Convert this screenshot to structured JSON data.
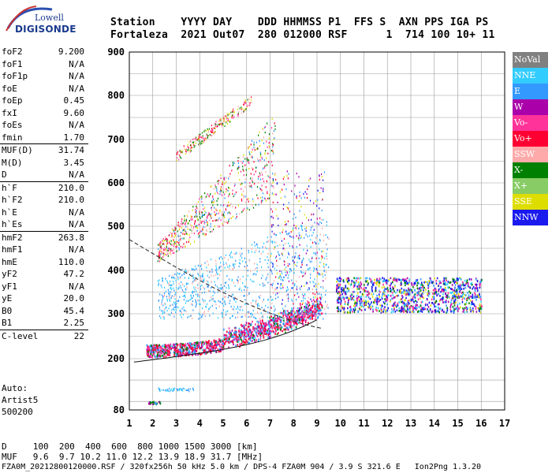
{
  "logo": {
    "line1": "Lowell",
    "line2": "DIGISONDE"
  },
  "header": {
    "labels_line": "Station    YYYY DAY    DDD HHMMSS P1  FFS S  AXN PPS IGA PS",
    "values_line": "Fortaleza  2021 Out07  280 012000 RSF      1  714 100 10+ 11"
  },
  "params": [
    {
      "k": "foF2",
      "v": "9.200",
      "sep": false
    },
    {
      "k": "foF1",
      "v": "N/A",
      "sep": false
    },
    {
      "k": "foF1p",
      "v": "N/A",
      "sep": false
    },
    {
      "k": "foE",
      "v": "N/A",
      "sep": false
    },
    {
      "k": "foEp",
      "v": "0.45",
      "sep": false
    },
    {
      "k": "fxI",
      "v": "9.60",
      "sep": false
    },
    {
      "k": "foEs",
      "v": "N/A",
      "sep": false
    },
    {
      "k": "fmin",
      "v": "1.70",
      "sep": false
    },
    {
      "k": "MUF(D)",
      "v": "31.74",
      "sep": true
    },
    {
      "k": "M(D)",
      "v": "3.45",
      "sep": false
    },
    {
      "k": "D",
      "v": "N/A",
      "sep": false
    },
    {
      "k": "h`F",
      "v": "210.0",
      "sep": true
    },
    {
      "k": "h`F2",
      "v": "210.0",
      "sep": false
    },
    {
      "k": "h`E",
      "v": "N/A",
      "sep": false
    },
    {
      "k": "h`Es",
      "v": "N/A",
      "sep": false
    },
    {
      "k": "hmF2",
      "v": "263.8",
      "sep": true
    },
    {
      "k": "hmF1",
      "v": "N/A",
      "sep": false
    },
    {
      "k": "hmE",
      "v": "110.0",
      "sep": false
    },
    {
      "k": "yF2",
      "v": "47.2",
      "sep": false
    },
    {
      "k": "yF1",
      "v": "N/A",
      "sep": false
    },
    {
      "k": "yE",
      "v": "20.0",
      "sep": false
    },
    {
      "k": "B0",
      "v": "45.4",
      "sep": false
    },
    {
      "k": "B1",
      "v": "2.25",
      "sep": false
    },
    {
      "k": "C-level",
      "v": "22",
      "sep": true
    }
  ],
  "auto": {
    "l1": "Auto:",
    "l2": "Artist5",
    "l3": "500200"
  },
  "legend": [
    {
      "label": "NoVal",
      "color": "#808080"
    },
    {
      "label": "NNE",
      "color": "#33ccff"
    },
    {
      "label": "E",
      "color": "#3399ff"
    },
    {
      "label": "W",
      "color": "#aa00aa"
    },
    {
      "label": "Vo-",
      "color": "#ff3399"
    },
    {
      "label": "Vo+",
      "color": "#ff0033"
    },
    {
      "label": "SSW",
      "color": "#ffaaaa"
    },
    {
      "label": "X-",
      "color": "#008000"
    },
    {
      "label": "X+",
      "color": "#88cc66"
    },
    {
      "label": "SSE",
      "color": "#dddd00"
    },
    {
      "label": "NNW",
      "color": "#1a1aee"
    }
  ],
  "axes": {
    "x_ticks": [
      "1",
      "2",
      "3",
      "4",
      "5",
      "6",
      "7",
      "8",
      "9",
      "10",
      "11",
      "12",
      "13",
      "14",
      "15",
      "16",
      "17"
    ],
    "y_ticks": [
      "80",
      "200",
      "300",
      "400",
      "500",
      "600",
      "700",
      "800",
      "900"
    ]
  },
  "footer": {
    "d_line": "D     100  200  400  600  800 1000 1500 3000 [km]",
    "muf_line": "MUF   9.6  9.7 10.2 11.0 12.2 13.9 18.9 31.7 [MHz]",
    "file_line": "FZA0M_20212800120000.RSF / 320fx256h 50 kHz 5.0 km / DPS-4 FZA0M 904 / 3.9 S 321.6 E   Ion2Png 1.3.20"
  }
}
